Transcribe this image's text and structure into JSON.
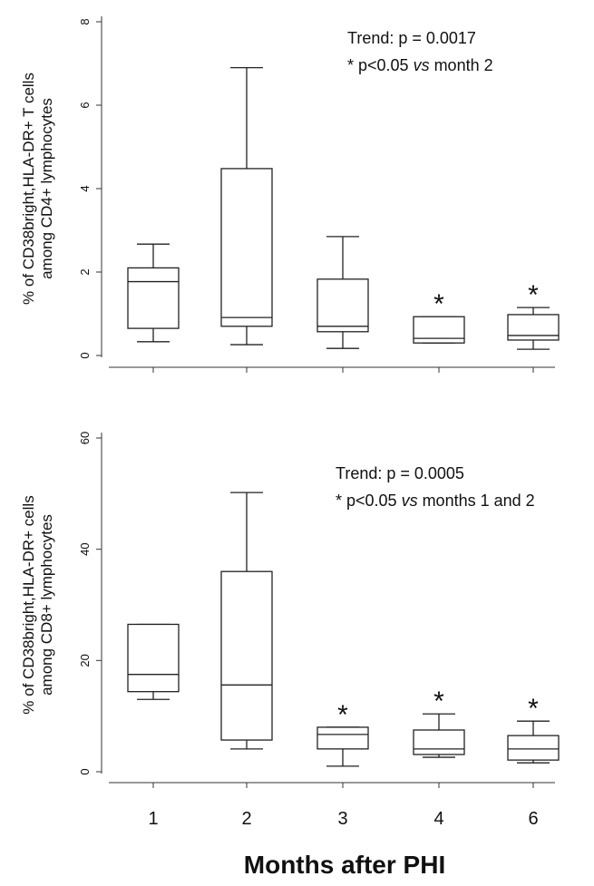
{
  "chart_data": [
    {
      "type": "box",
      "ylabel": [
        "% of CD38bright,HLA-DR+ T cells",
        "among CD4+ lymphocytes"
      ],
      "annotations": [
        "Trend: p = 0.0017"
      ],
      "note": {
        "prefix": "* p<0.05",
        "italic": "vs",
        "suffix": "month 2"
      },
      "categories": [
        null,
        null,
        null,
        null,
        null
      ],
      "boxes": [
        {
          "min": 0.33,
          "q1": 0.65,
          "median": 1.77,
          "q3": 2.1,
          "max": 2.67
        },
        {
          "min": 0.26,
          "q1": 0.7,
          "median": 0.91,
          "q3": 4.48,
          "max": 6.9
        },
        {
          "min": 0.17,
          "q1": 0.57,
          "median": 0.7,
          "q3": 1.83,
          "max": 2.85
        },
        {
          "min": 0.3,
          "q1": 0.3,
          "median": 0.41,
          "q3": 0.93,
          "max": 0.93
        },
        {
          "min": 0.15,
          "q1": 0.37,
          "median": 0.48,
          "q3": 0.98,
          "max": 1.15
        }
      ],
      "significance": [
        null,
        null,
        null,
        "*",
        "*"
      ],
      "color": "#222222",
      "ylim": [
        0,
        8
      ],
      "yticks": [
        0,
        2,
        4,
        6,
        8
      ]
    },
    {
      "type": "box",
      "ylabel": [
        "% of CD38bright,HLA-DR+ cells",
        "among CD8+ lymphocytes"
      ],
      "annotations": [
        "Trend: p = 0.0005"
      ],
      "note": {
        "prefix": "* p<0.05",
        "italic": "vs",
        "suffix": "months 1 and 2"
      },
      "categories": [
        "1",
        "2",
        "3",
        "4",
        "6"
      ],
      "xlabel": "Months after PHI",
      "boxes": [
        {
          "min": 13.0,
          "q1": 14.4,
          "median": 17.5,
          "q3": 26.5,
          "max": 26.5
        },
        {
          "min": 4.1,
          "q1": 5.7,
          "median": 15.6,
          "q3": 36.0,
          "max": 50.2
        },
        {
          "min": 1.0,
          "q1": 4.1,
          "median": 6.7,
          "q3": 8.0,
          "max": 8.0
        },
        {
          "min": 2.6,
          "q1": 3.1,
          "median": 4.1,
          "q3": 7.5,
          "max": 10.4
        },
        {
          "min": 1.6,
          "q1": 2.1,
          "median": 4.1,
          "q3": 6.5,
          "max": 9.1
        }
      ],
      "significance": [
        null,
        null,
        "*",
        "*",
        "*"
      ],
      "color": "#222222",
      "ylim": [
        0,
        60
      ],
      "yticks": [
        0,
        20,
        40,
        60
      ]
    }
  ]
}
